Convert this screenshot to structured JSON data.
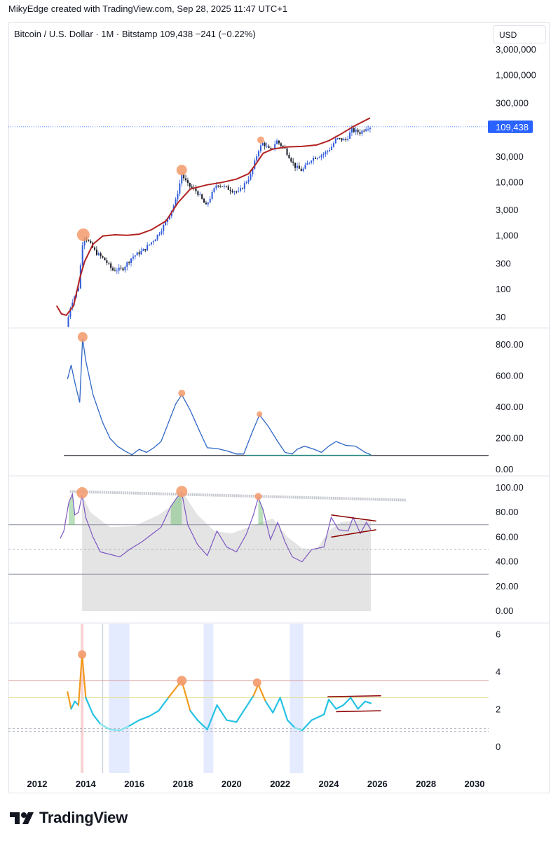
{
  "header": {
    "attribution": "MikyEdge created with TradingView.com, Sep 28, 2025 11:47 UTC+1"
  },
  "chart_data": [
    {
      "type": "candlestick",
      "title": "Bitcoin / U.S. Dollar · 1M · Bitstamp",
      "last_price": "109,438",
      "change": "−241 (−0.22%)",
      "currency": "USD",
      "scale": "log",
      "ylim": [
        25,
        4500000
      ],
      "y_ticks": [
        "3,000,000",
        "1,000,000",
        "300,000",
        "30,000",
        "10,000",
        "3,000",
        "1,000",
        "300",
        "100",
        "30"
      ],
      "price_line": 109438,
      "price_path": [
        [
          2013.2,
          20
        ],
        [
          2013.4,
          55
        ],
        [
          2013.7,
          110
        ],
        [
          2013.9,
          1050
        ],
        [
          2014.1,
          800
        ],
        [
          2014.4,
          500
        ],
        [
          2014.8,
          350
        ],
        [
          2015.1,
          230
        ],
        [
          2015.5,
          240
        ],
        [
          2015.9,
          400
        ],
        [
          2016.4,
          550
        ],
        [
          2016.9,
          950
        ],
        [
          2017.3,
          1800
        ],
        [
          2017.7,
          4500
        ],
        [
          2017.95,
          14000
        ],
        [
          2018.2,
          9000
        ],
        [
          2018.6,
          6500
        ],
        [
          2018.95,
          3600
        ],
        [
          2019.4,
          9500
        ],
        [
          2019.9,
          7500
        ],
        [
          2020.3,
          6500
        ],
        [
          2020.8,
          14000
        ],
        [
          2021.1,
          40000
        ],
        [
          2021.3,
          55000
        ],
        [
          2021.6,
          38000
        ],
        [
          2021.85,
          60000
        ],
        [
          2022.2,
          42000
        ],
        [
          2022.6,
          20000
        ],
        [
          2022.9,
          16500
        ],
        [
          2023.3,
          28000
        ],
        [
          2023.8,
          34000
        ],
        [
          2024.1,
          45000
        ],
        [
          2024.3,
          65000
        ],
        [
          2024.7,
          62000
        ],
        [
          2024.95,
          95000
        ],
        [
          2025.3,
          85000
        ],
        [
          2025.55,
          108000
        ],
        [
          2025.73,
          109438
        ]
      ],
      "ma_series": {
        "values": [
          [
            2012.8,
            50
          ],
          [
            2013.0,
            35
          ],
          [
            2013.2,
            33
          ],
          [
            2013.5,
            50
          ],
          [
            2013.75,
            160
          ],
          [
            2013.95,
            330
          ],
          [
            2014.3,
            700
          ],
          [
            2014.7,
            1000
          ],
          [
            2015.2,
            1050
          ],
          [
            2015.7,
            1030
          ],
          [
            2016.2,
            1080
          ],
          [
            2016.7,
            1300
          ],
          [
            2017.3,
            1900
          ],
          [
            2017.8,
            4200
          ],
          [
            2018.3,
            7500
          ],
          [
            2019.0,
            9000
          ],
          [
            2019.6,
            10000
          ],
          [
            2020.2,
            11500
          ],
          [
            2020.7,
            14500
          ],
          [
            2021.0,
            22000
          ],
          [
            2021.3,
            35000
          ],
          [
            2021.7,
            42000
          ],
          [
            2022.3,
            46000
          ],
          [
            2022.9,
            47000
          ],
          [
            2023.5,
            50000
          ],
          [
            2024.0,
            60000
          ],
          [
            2024.5,
            80000
          ],
          [
            2025.0,
            110000
          ],
          [
            2025.7,
            160000
          ]
        ]
      },
      "peak_markers": [
        [
          2013.9,
          1050
        ],
        [
          2017.95,
          17000
        ],
        [
          2021.2,
          62000
        ]
      ]
    },
    {
      "type": "line",
      "ylim": [
        0,
        900
      ],
      "y_ticks": [
        "800.00",
        "600.00",
        "400.00",
        "200.00",
        "0.00"
      ],
      "baseline": 90,
      "values": [
        [
          2013.25,
          580
        ],
        [
          2013.4,
          670
        ],
        [
          2013.55,
          560
        ],
        [
          2013.75,
          430
        ],
        [
          2013.87,
          840
        ],
        [
          2014.0,
          700
        ],
        [
          2014.3,
          480
        ],
        [
          2014.7,
          300
        ],
        [
          2015.0,
          200
        ],
        [
          2015.3,
          150
        ],
        [
          2015.6,
          120
        ],
        [
          2015.9,
          95
        ],
        [
          2016.2,
          130
        ],
        [
          2016.5,
          110
        ],
        [
          2016.8,
          140
        ],
        [
          2017.1,
          180
        ],
        [
          2017.4,
          300
        ],
        [
          2017.7,
          420
        ],
        [
          2017.95,
          480
        ],
        [
          2018.3,
          380
        ],
        [
          2018.7,
          240
        ],
        [
          2019.0,
          140
        ],
        [
          2019.4,
          135
        ],
        [
          2019.8,
          120
        ],
        [
          2020.2,
          100
        ],
        [
          2020.5,
          100
        ],
        [
          2020.85,
          240
        ],
        [
          2021.15,
          350
        ],
        [
          2021.5,
          280
        ],
        [
          2021.9,
          180
        ],
        [
          2022.2,
          110
        ],
        [
          2022.5,
          100
        ],
        [
          2022.7,
          130
        ],
        [
          2023.0,
          150
        ],
        [
          2023.4,
          130
        ],
        [
          2023.7,
          110
        ],
        [
          2024.0,
          150
        ],
        [
          2024.3,
          180
        ],
        [
          2024.7,
          155
        ],
        [
          2025.1,
          150
        ],
        [
          2025.5,
          110
        ],
        [
          2025.73,
          95
        ]
      ],
      "peak_markers": [
        [
          2013.87,
          850
        ],
        [
          2017.95,
          490
        ],
        [
          2021.15,
          355
        ]
      ]
    },
    {
      "type": "line",
      "ylim": [
        0,
        100
      ],
      "y_ticks": [
        "100.00",
        "80.00",
        "60.00",
        "40.00",
        "20.00",
        "0.00"
      ],
      "bands": [
        70,
        50,
        30
      ],
      "values": [
        [
          2012.95,
          59
        ],
        [
          2013.1,
          65
        ],
        [
          2013.3,
          88
        ],
        [
          2013.45,
          95
        ],
        [
          2013.55,
          78
        ],
        [
          2013.7,
          80
        ],
        [
          2013.85,
          94
        ],
        [
          2014.0,
          76
        ],
        [
          2014.3,
          60
        ],
        [
          2014.6,
          48
        ],
        [
          2015.0,
          46
        ],
        [
          2015.4,
          44
        ],
        [
          2015.8,
          50
        ],
        [
          2016.3,
          56
        ],
        [
          2016.7,
          62
        ],
        [
          2017.1,
          68
        ],
        [
          2017.5,
          85
        ],
        [
          2017.75,
          92
        ],
        [
          2017.95,
          96
        ],
        [
          2018.2,
          70
        ],
        [
          2018.6,
          54
        ],
        [
          2019.0,
          45
        ],
        [
          2019.4,
          65
        ],
        [
          2019.8,
          52
        ],
        [
          2020.2,
          48
        ],
        [
          2020.6,
          62
        ],
        [
          2020.9,
          78
        ],
        [
          2021.1,
          92
        ],
        [
          2021.3,
          82
        ],
        [
          2021.6,
          58
        ],
        [
          2021.9,
          72
        ],
        [
          2022.2,
          56
        ],
        [
          2022.5,
          44
        ],
        [
          2022.9,
          40
        ],
        [
          2023.3,
          50
        ],
        [
          2023.8,
          52
        ],
        [
          2024.1,
          76
        ],
        [
          2024.4,
          66
        ],
        [
          2024.8,
          65
        ],
        [
          2025.0,
          76
        ],
        [
          2025.3,
          63
        ],
        [
          2025.55,
          72
        ],
        [
          2025.73,
          66
        ]
      ],
      "gray_area": [
        [
          2013.85,
          94
        ],
        [
          2014.2,
          80
        ],
        [
          2015.0,
          68
        ],
        [
          2016.0,
          69
        ],
        [
          2017.0,
          78
        ],
        [
          2017.5,
          85
        ],
        [
          2018.0,
          96
        ],
        [
          2018.6,
          78
        ],
        [
          2019.3,
          65
        ],
        [
          2020.0,
          63
        ],
        [
          2020.7,
          68
        ],
        [
          2021.2,
          72
        ],
        [
          2021.7,
          75
        ],
        [
          2022.3,
          60
        ],
        [
          2022.9,
          51
        ],
        [
          2023.5,
          50
        ],
        [
          2024.0,
          65
        ],
        [
          2024.5,
          72
        ],
        [
          2025.73,
          75
        ]
      ],
      "peak_markers": [
        [
          2013.85,
          96
        ],
        [
          2017.95,
          97
        ],
        [
          2021.1,
          93
        ]
      ]
    },
    {
      "type": "line",
      "ylim": [
        -1,
        6
      ],
      "y_ticks": [
        "6",
        "4",
        "2",
        "0"
      ],
      "levels": [
        3.5,
        2.6,
        0.95,
        0.8
      ],
      "values": [
        [
          2013.25,
          2.9
        ],
        [
          2013.4,
          2.0
        ],
        [
          2013.55,
          2.4
        ],
        [
          2013.7,
          2.2
        ],
        [
          2013.85,
          4.9
        ],
        [
          2014.0,
          2.6
        ],
        [
          2014.3,
          1.7
        ],
        [
          2014.6,
          1.2
        ],
        [
          2015.0,
          0.9
        ],
        [
          2015.4,
          0.85
        ],
        [
          2015.8,
          1.1
        ],
        [
          2016.2,
          1.4
        ],
        [
          2016.6,
          1.6
        ],
        [
          2017.0,
          1.9
        ],
        [
          2017.4,
          2.6
        ],
        [
          2017.7,
          3.1
        ],
        [
          2017.95,
          3.5
        ],
        [
          2018.3,
          1.9
        ],
        [
          2018.6,
          1.4
        ],
        [
          2019.0,
          0.9
        ],
        [
          2019.4,
          2.2
        ],
        [
          2019.8,
          1.4
        ],
        [
          2020.2,
          1.3
        ],
        [
          2020.6,
          2.1
        ],
        [
          2020.9,
          2.7
        ],
        [
          2021.1,
          3.3
        ],
        [
          2021.4,
          2.4
        ],
        [
          2021.7,
          1.8
        ],
        [
          2022.0,
          2.6
        ],
        [
          2022.3,
          1.4
        ],
        [
          2022.6,
          1.0
        ],
        [
          2022.9,
          0.85
        ],
        [
          2023.3,
          1.4
        ],
        [
          2023.8,
          1.7
        ],
        [
          2024.0,
          2.5
        ],
        [
          2024.3,
          2.0
        ],
        [
          2024.6,
          2.2
        ],
        [
          2024.9,
          2.6
        ],
        [
          2025.2,
          2.0
        ],
        [
          2025.5,
          2.4
        ],
        [
          2025.73,
          2.3
        ]
      ],
      "peak_markers": [
        [
          2013.85,
          4.9
        ],
        [
          2017.95,
          3.5
        ],
        [
          2021.05,
          3.4
        ]
      ]
    }
  ],
  "x_axis": {
    "ticks": [
      "2012",
      "2014",
      "2016",
      "2018",
      "2020",
      "2022",
      "2024",
      "2026",
      "2028",
      "2030"
    ]
  },
  "branding": {
    "name": "TradingView"
  },
  "colors": {
    "candle_up": "#2e59d9",
    "candle_down": "#131722",
    "ma": "#b22222",
    "marker": "#f39a6b",
    "price_tag": "#2962ff",
    "line_blue": "#2e66c4",
    "rsi_purple": "#7e57c2",
    "osc_cyan": "#25c2e3",
    "osc_orange": "#f29a1e"
  }
}
